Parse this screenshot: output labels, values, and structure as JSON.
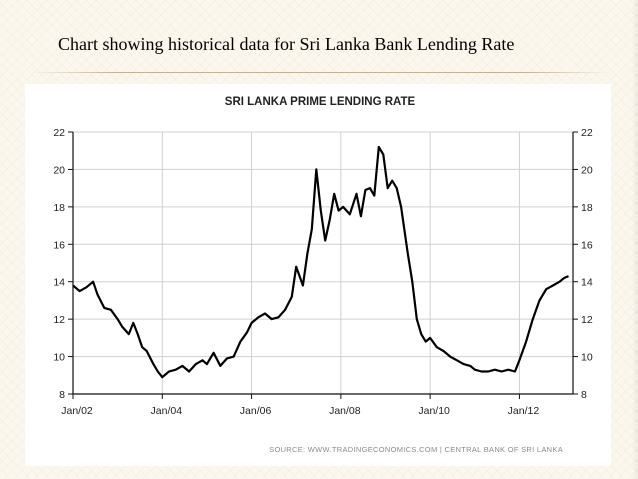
{
  "slide": {
    "title": "Chart showing historical data for Sri Lanka Bank Lending Rate"
  },
  "chart_data": {
    "type": "line",
    "title": "SRI LANKA PRIME LENDING RATE",
    "xlabel": "",
    "ylabel": "",
    "x_tick_labels": [
      "Jan/02",
      "Jan/04",
      "Jan/06",
      "Jan/08",
      "Jan/10",
      "Jan/12"
    ],
    "x_tick_values": [
      2002,
      2004,
      2006,
      2008,
      2010,
      2012
    ],
    "xlim": [
      2002,
      2013.2
    ],
    "ylim": [
      8,
      22
    ],
    "y_ticks": [
      8,
      10,
      12,
      14,
      16,
      18,
      20,
      22
    ],
    "grid": true,
    "secondary_y_axis": true,
    "source": "SOURCE: WWW.TRADINGECONOMICS.COM | CENTRAL BANK OF SRI LANKA",
    "series": [
      {
        "name": "Sri Lanka Prime Lending Rate",
        "x": [
          2002.0,
          2002.15,
          2002.3,
          2002.45,
          2002.55,
          2002.7,
          2002.85,
          2003.0,
          2003.1,
          2003.25,
          2003.35,
          2003.45,
          2003.55,
          2003.65,
          2003.8,
          2003.9,
          2004.0,
          2004.15,
          2004.3,
          2004.45,
          2004.6,
          2004.75,
          2004.9,
          2005.0,
          2005.15,
          2005.3,
          2005.45,
          2005.6,
          2005.75,
          2005.9,
          2006.0,
          2006.15,
          2006.3,
          2006.45,
          2006.6,
          2006.75,
          2006.9,
          2007.0,
          2007.15,
          2007.25,
          2007.35,
          2007.45,
          2007.55,
          2007.65,
          2007.75,
          2007.85,
          2007.95,
          2008.05,
          2008.2,
          2008.35,
          2008.45,
          2008.55,
          2008.65,
          2008.75,
          2008.85,
          2008.95,
          2009.05,
          2009.15,
          2009.25,
          2009.35,
          2009.5,
          2009.6,
          2009.7,
          2009.8,
          2009.9,
          2010.0,
          2010.15,
          2010.3,
          2010.45,
          2010.6,
          2010.75,
          2010.9,
          2011.0,
          2011.15,
          2011.3,
          2011.45,
          2011.6,
          2011.75,
          2011.9,
          2012.0,
          2012.15,
          2012.3,
          2012.45,
          2012.6,
          2012.75,
          2012.9,
          2013.0,
          2013.1
        ],
        "values": [
          13.8,
          13.5,
          13.7,
          14.0,
          13.3,
          12.6,
          12.5,
          12.0,
          11.6,
          11.2,
          11.8,
          11.2,
          10.5,
          10.3,
          9.6,
          9.2,
          8.9,
          9.2,
          9.3,
          9.5,
          9.2,
          9.6,
          9.8,
          9.6,
          10.2,
          9.5,
          9.9,
          10.0,
          10.8,
          11.3,
          11.8,
          12.1,
          12.3,
          12.0,
          12.1,
          12.5,
          13.2,
          14.8,
          13.8,
          15.5,
          16.8,
          20.0,
          17.8,
          16.2,
          17.3,
          18.7,
          17.8,
          18.0,
          17.6,
          18.7,
          17.5,
          18.9,
          19.0,
          18.6,
          21.2,
          20.8,
          19.0,
          19.4,
          19.0,
          18.0,
          15.5,
          14.0,
          12.0,
          11.2,
          10.8,
          11.0,
          10.5,
          10.3,
          10.0,
          9.8,
          9.6,
          9.5,
          9.3,
          9.2,
          9.2,
          9.3,
          9.2,
          9.3,
          9.2,
          9.8,
          10.8,
          12.0,
          13.0,
          13.6,
          13.8,
          14.0,
          14.2,
          14.3
        ]
      }
    ]
  }
}
